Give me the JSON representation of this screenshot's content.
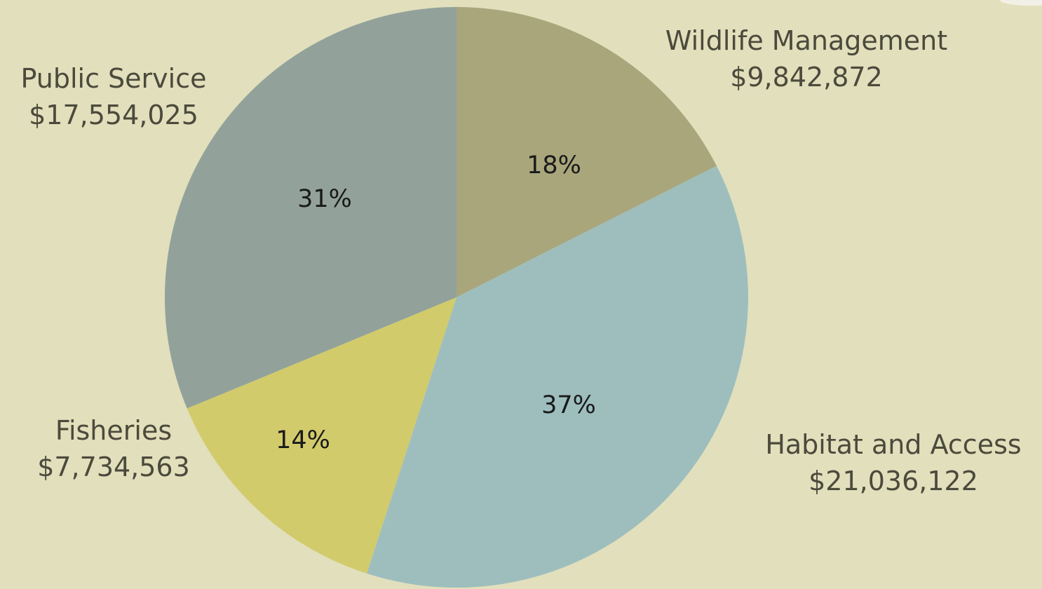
{
  "chart_data": {
    "type": "pie",
    "slices": [
      {
        "label": "Wildlife Management",
        "amount": "$9,842,872",
        "value": 9842872,
        "percent": "18%",
        "color": "#A9A67C"
      },
      {
        "label": "Habitat and Access",
        "amount": "$21,036,122",
        "value": 21036122,
        "percent": "37%",
        "color": "#9EBEBE"
      },
      {
        "label": "Fisheries",
        "amount": "$7,734,563",
        "value": 7734563,
        "percent": "14%",
        "color": "#D2CB6C"
      },
      {
        "label": "Public Service",
        "amount": "$17,554,025",
        "value": 17554025,
        "percent": "31%",
        "color": "#92A29B"
      }
    ],
    "start": "12 o'clock",
    "direction": "clockwise"
  },
  "colors": {
    "background": "#E2DFBC",
    "label_text": "#4A4A3C",
    "percent_text": "#1A1A1A"
  }
}
